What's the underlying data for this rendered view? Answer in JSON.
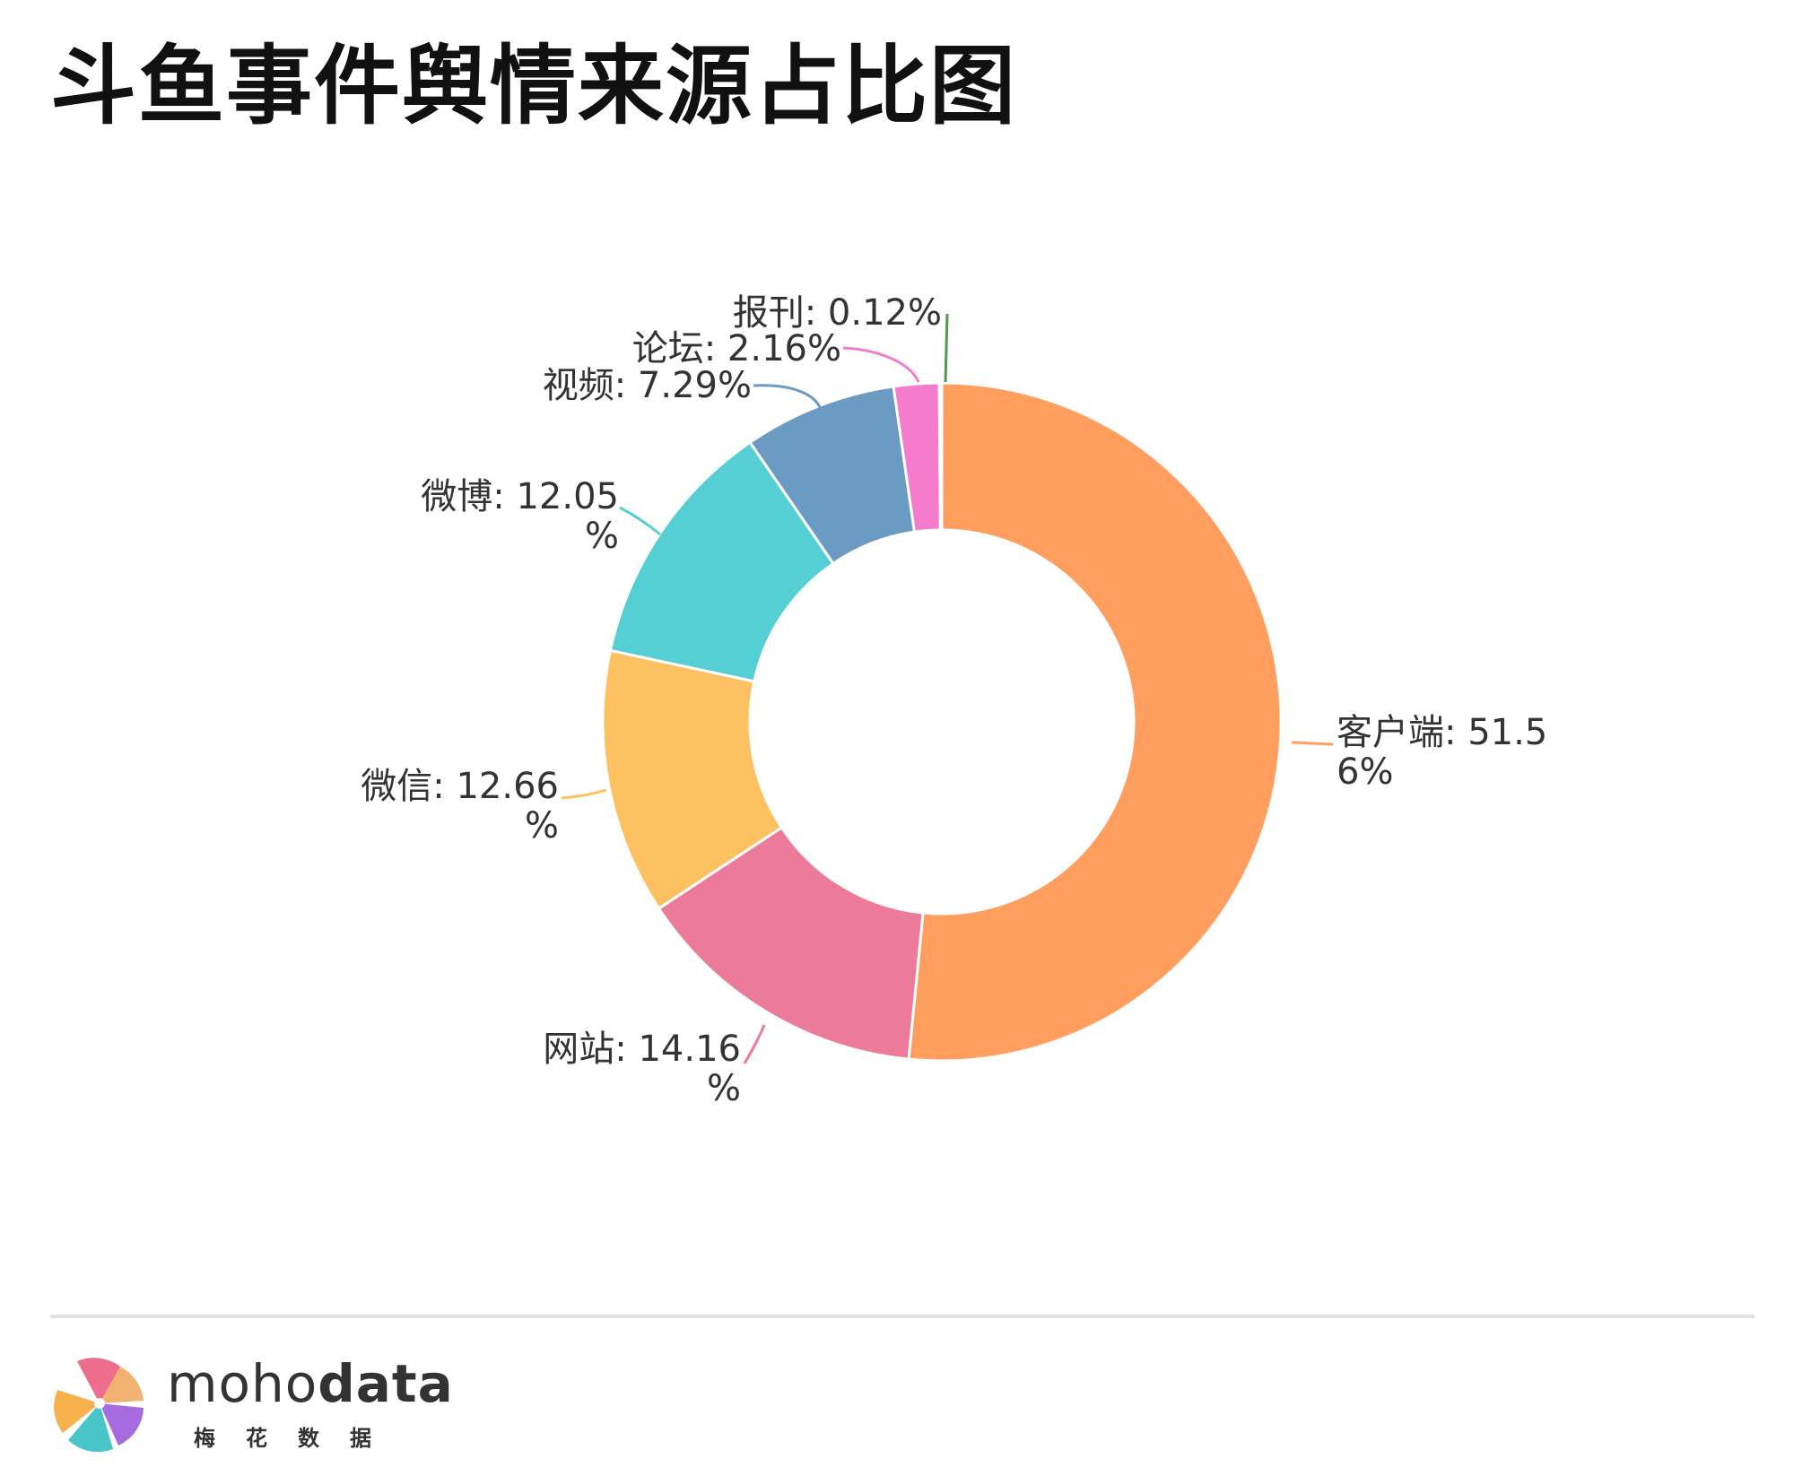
{
  "chart_data": {
    "type": "pie",
    "title": "斗鱼事件舆情来源占比图",
    "donut": true,
    "categories": [
      "客户端",
      "网站",
      "微信",
      "微博",
      "视频",
      "论坛",
      "报刊"
    ],
    "values": [
      51.56,
      14.16,
      12.66,
      12.05,
      7.29,
      2.16,
      0.12
    ],
    "colors": [
      "#FF9E5E",
      "#EC7B99",
      "#FDC162",
      "#56CFD4",
      "#6B9BC3",
      "#F57CCD",
      "#4E9A4B"
    ],
    "labels": [
      [
        "客户端: 51.5",
        "6%"
      ],
      [
        "网站: 14.16",
        "%"
      ],
      [
        "微信: 12.66",
        "%"
      ],
      [
        "微博: 12.05",
        "%"
      ],
      [
        "视频: 7.29%"
      ],
      [
        "论坛: 2.16%"
      ],
      [
        "报刊: 0.12%"
      ]
    ]
  },
  "footer": {
    "brand_light": "moho",
    "brand_bold": "data",
    "brand_sub": "梅花数据"
  }
}
